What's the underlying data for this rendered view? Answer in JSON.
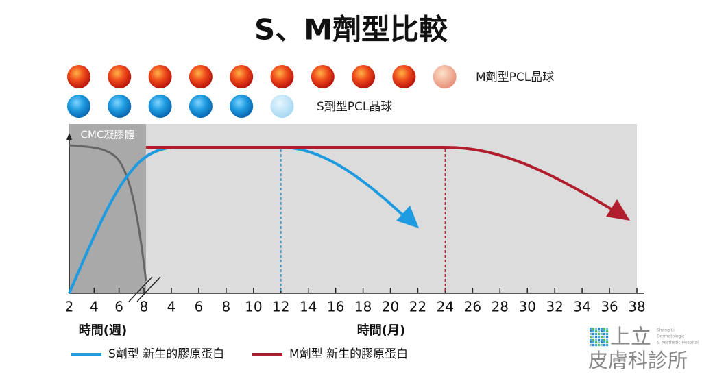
{
  "title": "S、M劑型比較",
  "dot_labels": {
    "m": "M劑型PCL晶球",
    "s": "S劑型PCL晶球"
  },
  "chart": {
    "region_label": "CMC凝膠體",
    "week_ticks": [
      2,
      4,
      6,
      8
    ],
    "month_ticks": [
      4,
      6,
      8,
      10,
      12,
      14,
      16,
      18,
      20,
      22,
      24,
      26,
      28,
      30,
      32,
      34,
      36,
      38
    ],
    "week_axis_label": "時間(週)",
    "month_axis_label": "時間(月)"
  },
  "legend": [
    "S劑型 新生的膠原蛋白",
    "M劑型 新生的膠原蛋白"
  ],
  "logo": {
    "name_top": "上立",
    "name_bottom": "皮膚科診所",
    "english": [
      "Shang Li",
      "Dermatologic",
      "& Aesthetic Hospital"
    ]
  }
}
